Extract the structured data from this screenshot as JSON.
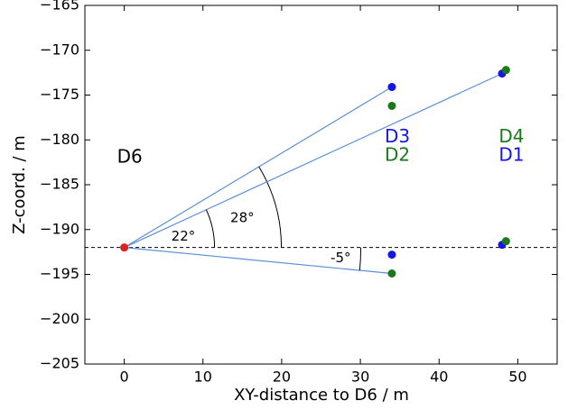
{
  "chart_data": {
    "type": "scatter",
    "xlabel": "XY-distance to D6 / m",
    "ylabel": "Z-coord. / m",
    "xlim": [
      -5,
      55
    ],
    "ylim": [
      -205,
      -165
    ],
    "xticks": [
      0,
      10,
      20,
      30,
      40,
      50
    ],
    "yticks": [
      {
        "value": -205,
        "label": "−205"
      },
      {
        "value": -200,
        "label": "−200"
      },
      {
        "value": -195,
        "label": "−195"
      },
      {
        "value": -190,
        "label": "−190"
      },
      {
        "value": -185,
        "label": "−185"
      },
      {
        "value": -180,
        "label": "−180"
      },
      {
        "value": -175,
        "label": "−175"
      },
      {
        "value": -170,
        "label": "−170"
      },
      {
        "value": -165,
        "label": "−165"
      }
    ],
    "hline": -192,
    "lines": [
      {
        "color": "#5b8fd6",
        "x": [
          0,
          34
        ],
        "y": [
          -192,
          -174.1
        ]
      },
      {
        "color": "#5b8fd6",
        "x": [
          0,
          48
        ],
        "y": [
          -192,
          -172.6
        ]
      },
      {
        "color": "#5b8fd6",
        "x": [
          0,
          34
        ],
        "y": [
          -192,
          -194.9
        ]
      }
    ],
    "series": [
      {
        "color": "#1515e6",
        "x": [
          34,
          34,
          48,
          48
        ],
        "y": [
          -174.1,
          -192.8,
          -172.6,
          -191.7
        ]
      },
      {
        "color": "#1a7a1a",
        "x": [
          34,
          34,
          48.5,
          48.5
        ],
        "y": [
          -176.2,
          -194.9,
          -172.2,
          -191.3
        ]
      },
      {
        "color": "#e01f1f",
        "x": [
          0
        ],
        "y": [
          -192
        ]
      }
    ],
    "labels": [
      {
        "text": "D6",
        "x": 0.7,
        "y": -182,
        "color": "#000000"
      },
      {
        "text": "D3",
        "x": 34.7,
        "y": -179.7,
        "color": "#1515e6"
      },
      {
        "text": "D2",
        "x": 34.7,
        "y": -181.8,
        "color": "#1a7a1a"
      },
      {
        "text": "D4",
        "x": 49.2,
        "y": -179.7,
        "color": "#1a7a1a"
      },
      {
        "text": "D1",
        "x": 49.2,
        "y": -181.8,
        "color": "#1515e6"
      }
    ],
    "angles": [
      {
        "text": "22°",
        "x": 7.5,
        "y": -190.8
      },
      {
        "text": "28°",
        "x": 15,
        "y": -188.7
      },
      {
        "text": "-5°",
        "x": 27.5,
        "y": -193.2
      }
    ]
  }
}
